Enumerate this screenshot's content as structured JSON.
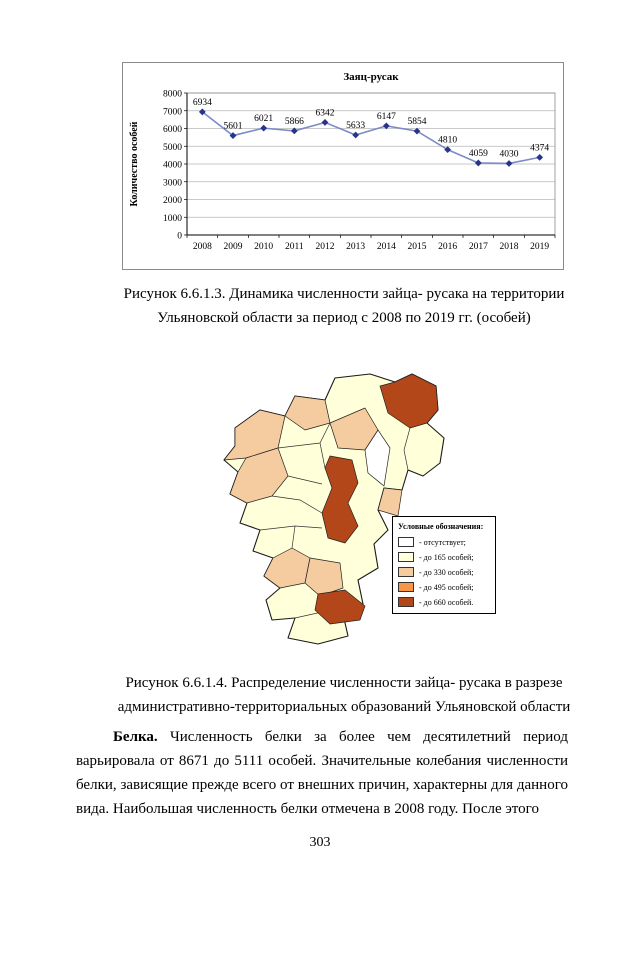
{
  "chart_data": {
    "type": "line",
    "title": "Заяц-русак",
    "ylabel": "Количество особей",
    "xlabel": "",
    "categories": [
      "2008",
      "2009",
      "2010",
      "2011",
      "2012",
      "2013",
      "2014",
      "2015",
      "2016",
      "2017",
      "2018",
      "2019"
    ],
    "values": [
      6934,
      5601,
      6021,
      5866,
      6342,
      5633,
      6147,
      5854,
      4810,
      4059,
      4030,
      4374
    ],
    "ylim": [
      0,
      8000
    ],
    "ytick_step": 1000,
    "grid": true,
    "legend_position": "none",
    "colors": {
      "line": "#7B8BC8",
      "marker": "#27348B",
      "grid": "#b8b8b8"
    }
  },
  "figure1": {
    "caption": [
      "Рисунок 6.6.1.3. Динамика численности зайца- русака на территории",
      "Ульяновской области за период с 2008 по 2019 гг. (особей)"
    ]
  },
  "figure2": {
    "caption": [
      "Рисунок 6.6.1.4. Распределение численности зайца- русака в разрезе",
      "административно-территориальных образований Ульяновской области"
    ]
  },
  "map": {
    "legend_title": "Условные обозначения:",
    "legend": [
      {
        "label": "- отсутствует;",
        "color": "#FFFFFF"
      },
      {
        "label": "- до 165 особей;",
        "color": "#FFFFD9"
      },
      {
        "label": "- до 330 особей;",
        "color": "#F5CBA0"
      },
      {
        "label": "- до 495 особей;",
        "color": "#F79646"
      },
      {
        "label": "- до 660 особей.",
        "color": "#B34719"
      }
    ]
  },
  "paragraph": {
    "lead": "Белка.",
    "body": " Численность белки за более чем десятилетний период варьировала от 8671 до 5111 особей. Значительные колебания численности белки, зависящие прежде всего от внешних причин, характерны для данного вида. Наибольшая численность белки отмечена в 2008 году. После этого"
  },
  "page_number": "303"
}
